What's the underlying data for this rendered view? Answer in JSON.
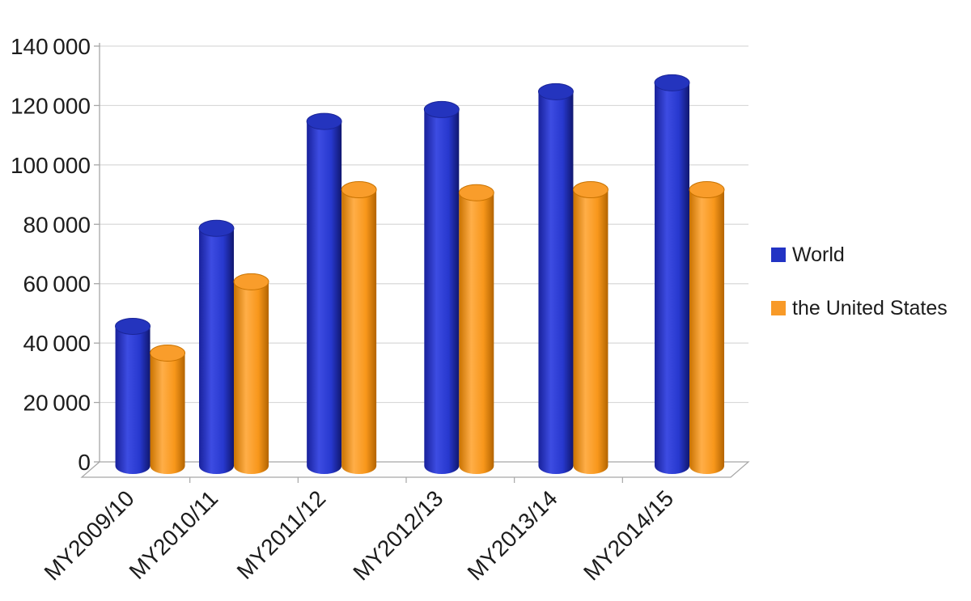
{
  "chart_data": {
    "type": "bar",
    "style": "3d-cylinder",
    "title": "",
    "categories": [
      "MY2009/10",
      "MY2010/11",
      "MY2011/12",
      "MY2012/13",
      "MY2013/14",
      "MY2014/15"
    ],
    "series": [
      {
        "name": "World",
        "color": "#2233C4",
        "values": [
          47000,
          80000,
          116000,
          120000,
          126000,
          129000
        ],
        "shades": {
          "edge": "#18219B",
          "light": "#3D4CE2",
          "mid": "#2738CE",
          "edge2": "#10176F",
          "top": "#2434BE",
          "rim": "#1A2598"
        }
      },
      {
        "name": "the United States",
        "color": "#F89A28",
        "values": [
          38000,
          62000,
          93000,
          92000,
          93000,
          93000
        ],
        "shades": {
          "edge": "#C97200",
          "light": "#FFAE48",
          "mid": "#F8971B",
          "edge2": "#B36400",
          "top": "#F99D2B",
          "rim": "#C97301"
        }
      }
    ],
    "ylim": [
      0,
      140000
    ],
    "ytick_step": 20000,
    "y_tick_labels": [
      "0",
      "20 000",
      "40 000",
      "60 000",
      "80 000",
      "100 000",
      "120 000",
      "140 000"
    ],
    "grid": true,
    "legend_position": "right",
    "axis_color": "#A6A6A6",
    "gridline_color": "#D9D9D9",
    "text_color": "#1C1C1C"
  }
}
